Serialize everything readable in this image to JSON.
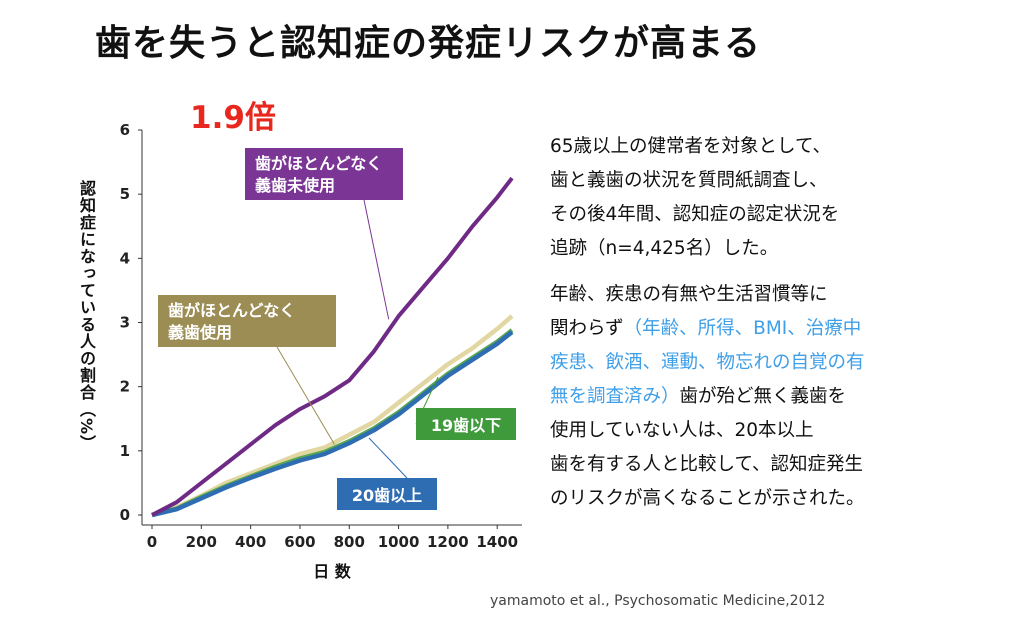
{
  "title": "歯を失うと認知症の発症リスクが高まる",
  "ratio_label": "1.9倍",
  "chart_data": {
    "type": "line",
    "xlabel": "日 数",
    "ylabel": "認知症になっている人の割合（%）",
    "xlim": [
      0,
      1460
    ],
    "ylim": [
      0,
      6
    ],
    "x_ticks": [
      0,
      200,
      400,
      600,
      800,
      1000,
      1200,
      1400
    ],
    "y_ticks": [
      0,
      1,
      2,
      3,
      4,
      5,
      6
    ],
    "x_tick_labels": [
      "0",
      "200",
      "400",
      "600",
      "800",
      "1000",
      "1200",
      "1400"
    ],
    "y_tick_labels": [
      "0",
      "1",
      "2",
      "3",
      "4",
      "5",
      "6"
    ],
    "grid": false,
    "series": [
      {
        "name": "歯がほとんどなく義歯未使用",
        "label_lines": [
          "歯がほとんどなく",
          "義歯未使用"
        ],
        "color": "#6f2a86",
        "label_bg": "#7b3594",
        "x": [
          0,
          100,
          200,
          300,
          400,
          500,
          600,
          700,
          800,
          900,
          1000,
          1100,
          1200,
          1300,
          1400,
          1460
        ],
        "y": [
          0.0,
          0.2,
          0.5,
          0.8,
          1.1,
          1.4,
          1.65,
          1.85,
          2.1,
          2.55,
          3.1,
          3.55,
          4.0,
          4.5,
          4.95,
          5.25
        ]
      },
      {
        "name": "歯がほとんどなく義歯使用",
        "label_lines": [
          "歯がほとんどなく",
          "義歯使用"
        ],
        "color": "#e2d6a2",
        "label_bg": "#9c8d55",
        "x": [
          0,
          100,
          200,
          300,
          400,
          500,
          600,
          700,
          800,
          900,
          1000,
          1100,
          1200,
          1300,
          1400,
          1460
        ],
        "y": [
          0.0,
          0.12,
          0.3,
          0.5,
          0.65,
          0.8,
          0.95,
          1.05,
          1.25,
          1.45,
          1.75,
          2.05,
          2.35,
          2.6,
          2.9,
          3.1
        ]
      },
      {
        "name": "19歯以下",
        "label_lines": [
          "19歯以下"
        ],
        "color": "#58a84e",
        "label_bg": "#3f9a3c",
        "x": [
          0,
          100,
          200,
          300,
          400,
          500,
          600,
          700,
          800,
          900,
          1000,
          1100,
          1200,
          1300,
          1400,
          1460
        ],
        "y": [
          0.0,
          0.1,
          0.28,
          0.45,
          0.6,
          0.75,
          0.88,
          0.98,
          1.15,
          1.35,
          1.6,
          1.9,
          2.2,
          2.45,
          2.7,
          2.88
        ]
      },
      {
        "name": "20歯以上",
        "label_lines": [
          "20歯以上"
        ],
        "color": "#2f6db3",
        "label_bg": "#2f6db3",
        "x": [
          0,
          100,
          200,
          300,
          400,
          500,
          600,
          700,
          800,
          900,
          1000,
          1100,
          1200,
          1300,
          1400,
          1460
        ],
        "y": [
          0.0,
          0.09,
          0.26,
          0.43,
          0.58,
          0.72,
          0.85,
          0.95,
          1.12,
          1.32,
          1.57,
          1.87,
          2.17,
          2.42,
          2.67,
          2.85
        ]
      }
    ]
  },
  "description": {
    "para1": [
      "65歳以上の健常者を対象として、",
      "歯と義歯の状況を質問紙調査し、",
      "その後4年間、認知症の認定状況を",
      "追跡（n=4,425名）した。"
    ],
    "para2_line1": "年齢、疾患の有無や生活習慣等に",
    "para2_line2_a": "関わらず",
    "para2_line2_b": "（年齢、所得、BMI、治療中",
    "para2_line3": "疾患、飲酒、運動、物忘れの自覚の有",
    "para2_line4_a": "無を調査済み）",
    "para2_line4_b": "歯が殆ど無く義歯を",
    "para2_line5": "使用していない人は、20本以上",
    "para2_line6": "歯を有する人と比較して、認知症発生",
    "para2_line7": "のリスクが高くなることが示された。"
  },
  "citation": "yamamoto et al., Psychosomatic Medicine,2012"
}
